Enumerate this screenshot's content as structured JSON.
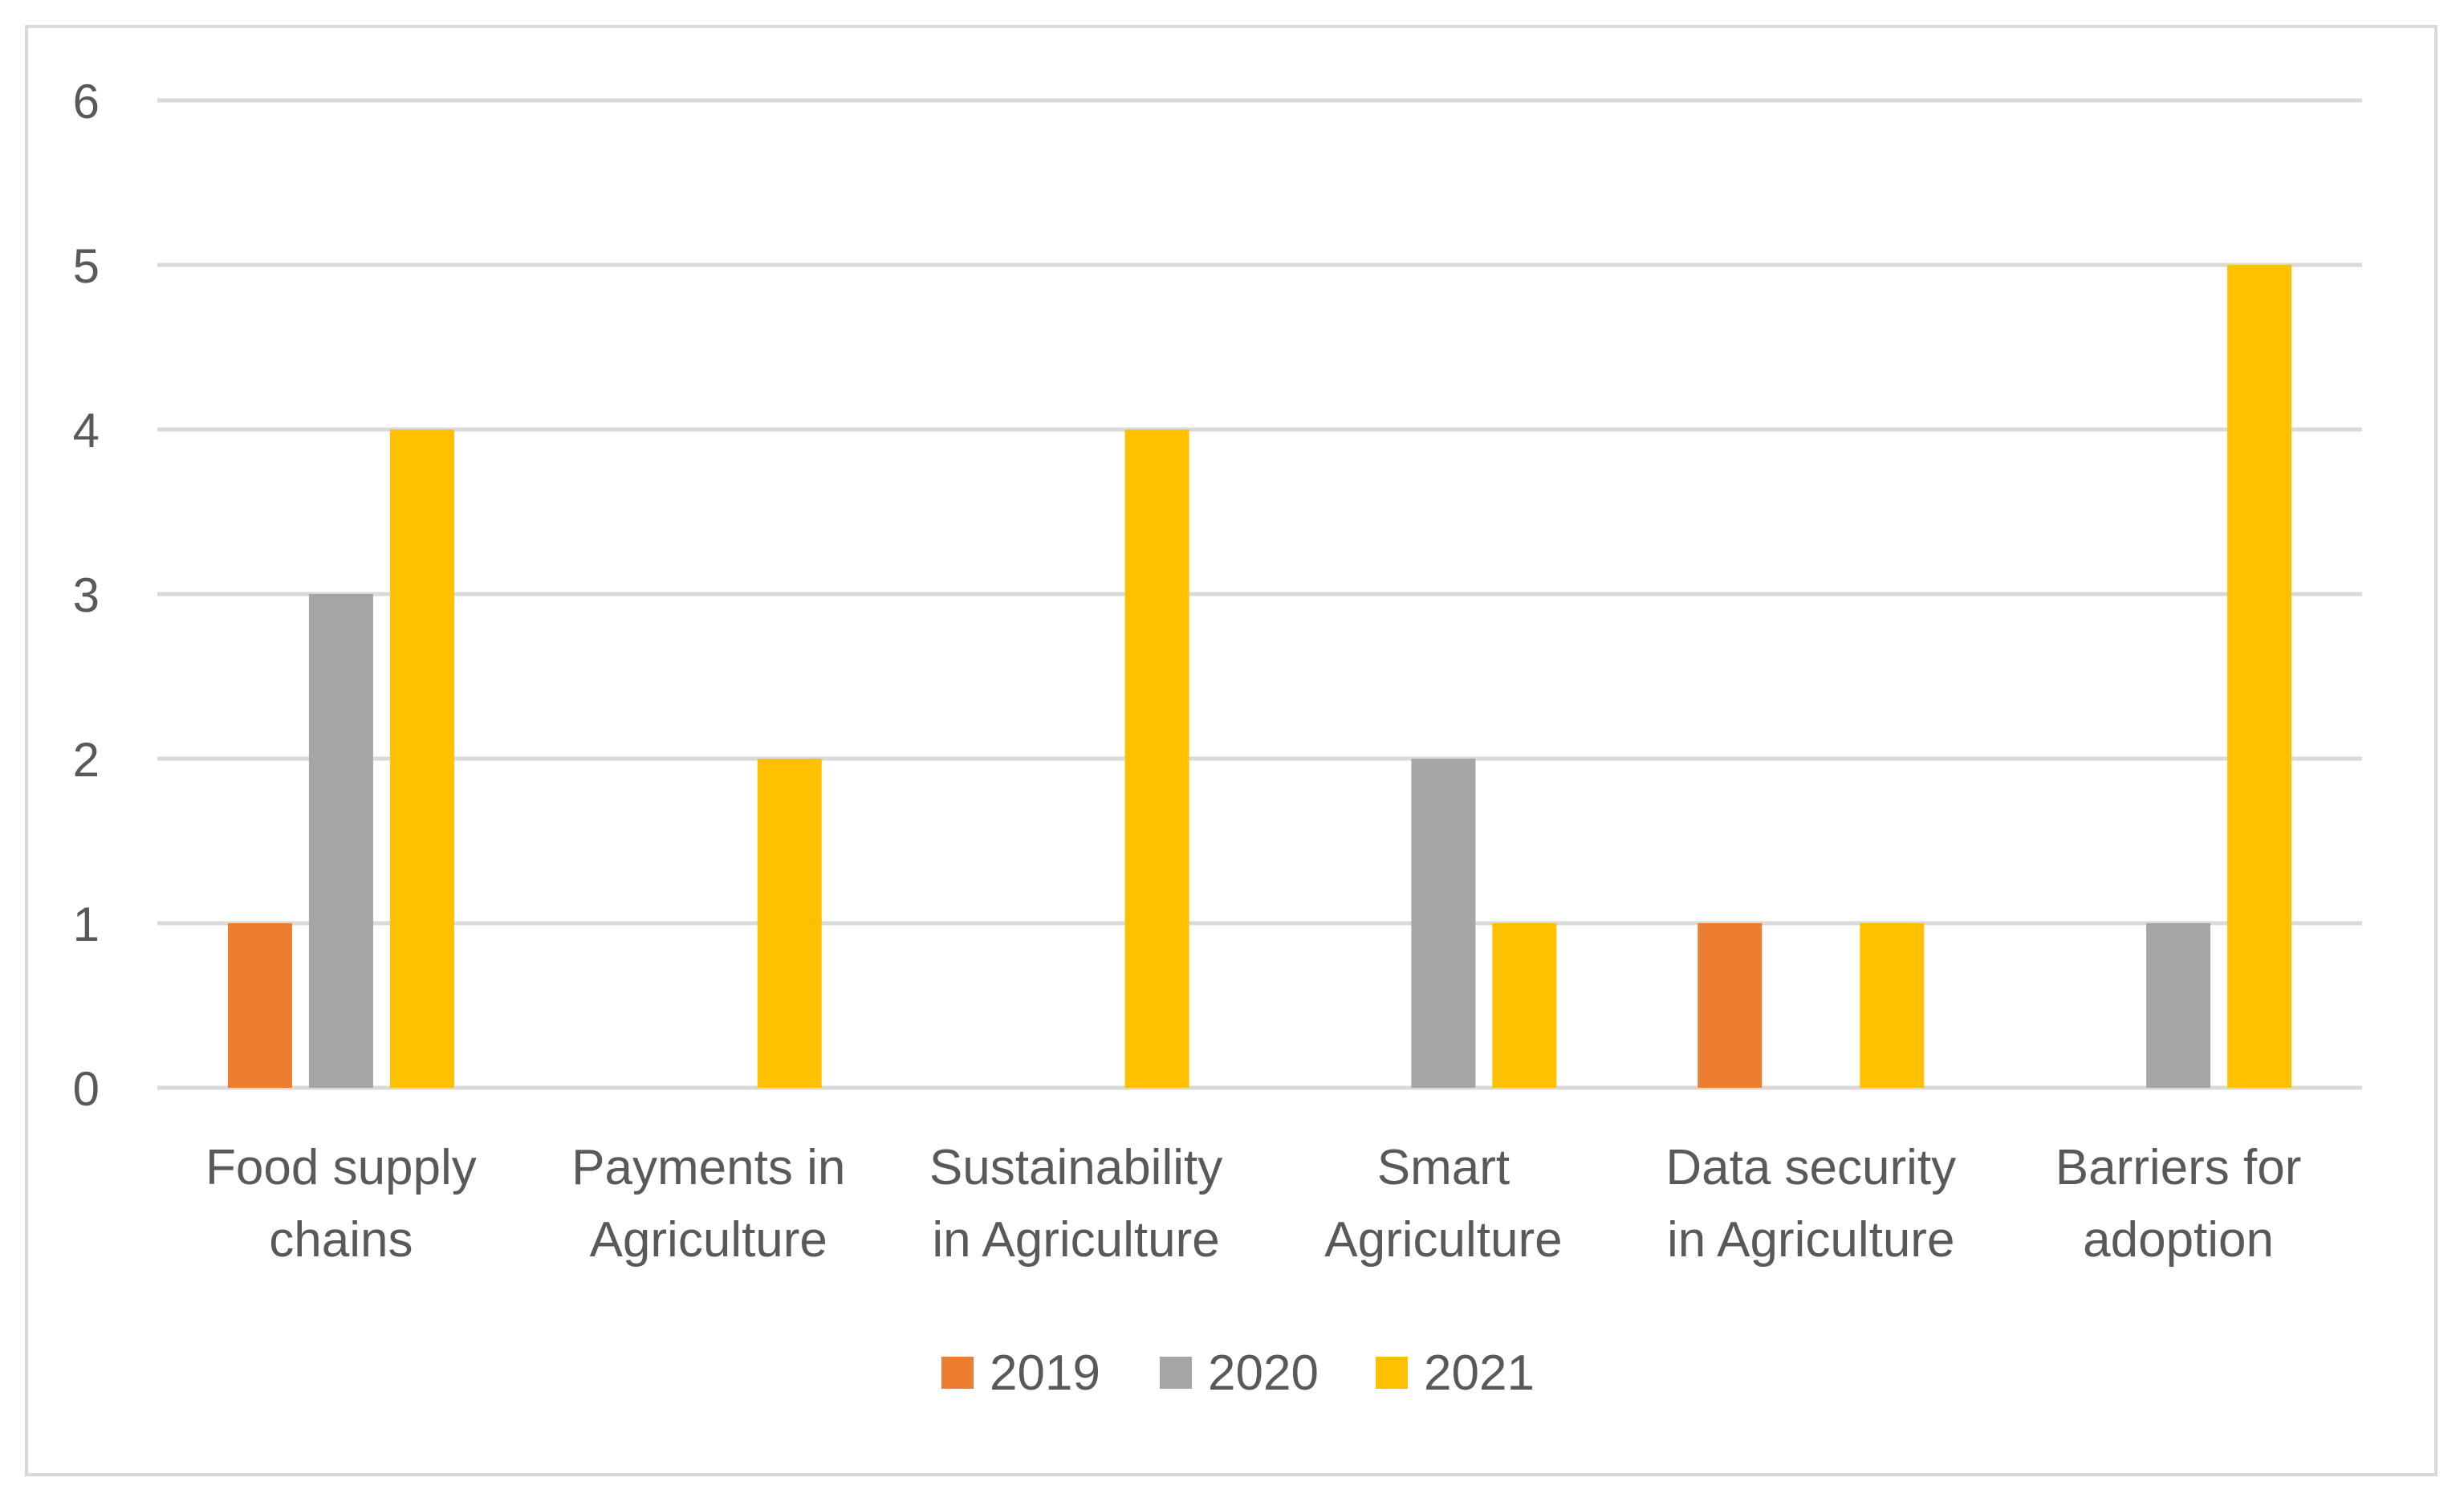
{
  "chart_data": {
    "type": "bar",
    "title": "",
    "xlabel": "",
    "ylabel": "",
    "ylim": [
      0,
      6
    ],
    "yticks": [
      0,
      1,
      2,
      3,
      4,
      5,
      6
    ],
    "grid": true,
    "legend_position": "bottom",
    "categories": [
      [
        "Food supply",
        "chains"
      ],
      [
        "Payments in",
        "Agriculture"
      ],
      [
        "Sustainability",
        "in Agriculture"
      ],
      [
        "Smart",
        "Agriculture"
      ],
      [
        "Data security",
        "in Agriculture"
      ],
      [
        "Barriers for",
        "adoption"
      ]
    ],
    "series": [
      {
        "name": "2019",
        "color": "#ED7D31",
        "values": [
          1,
          0,
          0,
          0,
          1,
          0
        ]
      },
      {
        "name": "2020",
        "color": "#A5A5A5",
        "values": [
          3,
          0,
          0,
          2,
          0,
          1
        ]
      },
      {
        "name": "2021",
        "color": "#FFC000",
        "values": [
          4,
          2,
          4,
          1,
          1,
          5
        ]
      }
    ]
  }
}
